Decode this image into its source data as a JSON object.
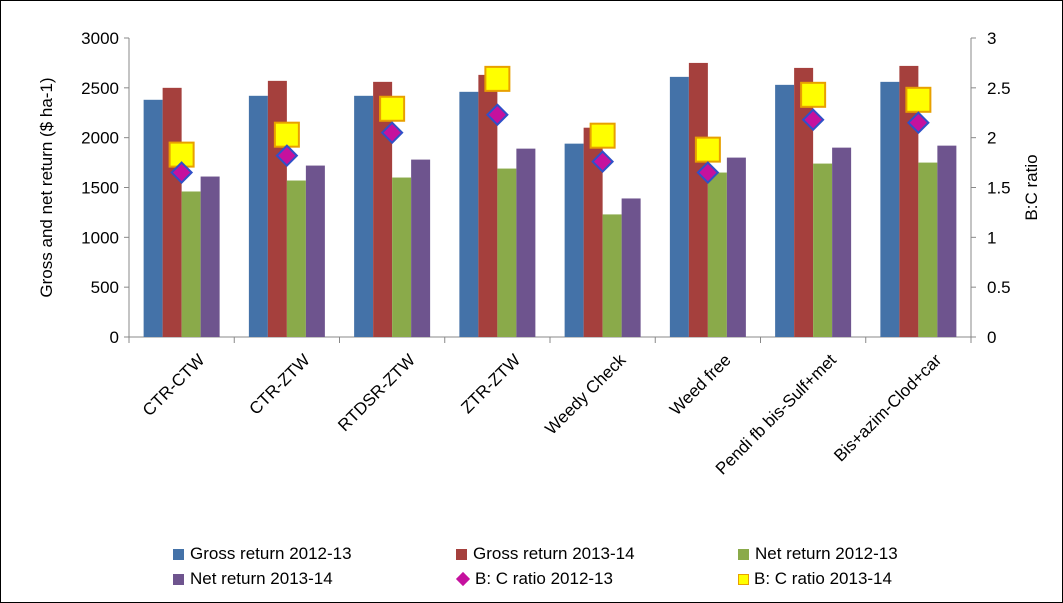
{
  "chart_data": {
    "type": "bar",
    "categories": [
      "CTR-CTW",
      "CTR-ZTW",
      "RTDSR-ZTW",
      "ZTR-ZTW",
      "Weedy Check",
      "Weed free",
      "Pendi fb bis-Sulf+met",
      "Bis+azim-Clod+car"
    ],
    "series": [
      {
        "name": "Gross return 2012-13",
        "type": "bar",
        "axis": "left",
        "color": "#4472A8",
        "values": [
          2380,
          2420,
          2420,
          2460,
          1940,
          2610,
          2530,
          2560
        ]
      },
      {
        "name": "Gross return 2013-14",
        "type": "bar",
        "axis": "left",
        "color": "#A5403D",
        "values": [
          2500,
          2570,
          2560,
          2630,
          2100,
          2750,
          2700,
          2720
        ]
      },
      {
        "name": "Net return 2012-13",
        "type": "bar",
        "axis": "left",
        "color": "#8AAA4A",
        "values": [
          1460,
          1570,
          1600,
          1690,
          1230,
          1650,
          1740,
          1750
        ]
      },
      {
        "name": "Net return 2013-14",
        "type": "bar",
        "axis": "left",
        "color": "#6E548E",
        "values": [
          1610,
          1720,
          1780,
          1890,
          1390,
          1800,
          1900,
          1920
        ]
      },
      {
        "name": "B: C ratio 2012-13",
        "type": "marker",
        "marker": "diamond",
        "axis": "right",
        "color": "#C5119E",
        "values": [
          1.65,
          1.82,
          2.05,
          2.23,
          1.76,
          1.65,
          2.18,
          2.15
        ]
      },
      {
        "name": "B: C ratio 2013-14",
        "type": "marker",
        "marker": "square",
        "axis": "right",
        "color": "#FFFF00",
        "values": [
          1.83,
          2.03,
          2.29,
          2.59,
          2.02,
          1.88,
          2.43,
          2.38
        ]
      }
    ],
    "ylabel": "Gross and net return ($ ha-1)",
    "y2label": "B:C ratio",
    "xlabel": "",
    "ylim": [
      0,
      3000
    ],
    "y2lim": [
      0,
      3
    ],
    "yticks": [
      "0",
      "500",
      "1000",
      "1500",
      "2000",
      "2500",
      "3000"
    ],
    "y2ticks": [
      "0",
      "0.5",
      "1",
      "1.5",
      "2",
      "2.5",
      "3"
    ],
    "grid": false,
    "legend_position": "bottom"
  }
}
